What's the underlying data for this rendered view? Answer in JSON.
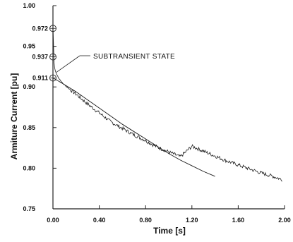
{
  "chart_data": {
    "type": "line",
    "title": "",
    "xlabel": "Time [s]",
    "ylabel": "Armiture Current [pu]",
    "xlim": [
      0.0,
      2.0
    ],
    "ylim": [
      0.75,
      1.0
    ],
    "grid": false,
    "x_ticks": [
      "0.00",
      "0.40",
      "0.80",
      "1.20",
      "1.60",
      "2.00"
    ],
    "x_tick_values": [
      0.0,
      0.4,
      0.8,
      1.2,
      1.6,
      2.0
    ],
    "y_ticks": [
      "0.75",
      "0.80",
      "0.85",
      "0.90",
      "0.95",
      "1.00"
    ],
    "y_tick_values": [
      0.75,
      0.8,
      0.85,
      0.9,
      0.95,
      1.0
    ],
    "markers": [
      {
        "label": "0.972",
        "x": 0.0,
        "y": 0.972
      },
      {
        "label": "0.937",
        "x": 0.0,
        "y": 0.937
      },
      {
        "label": "0.911",
        "x": 0.0,
        "y": 0.911
      }
    ],
    "annotation": {
      "text": "SUBTRANSIENT STATE",
      "x": 0.22,
      "y": 0.935,
      "points_to": [
        0.03,
        0.918
      ]
    },
    "series": [
      {
        "x": [
          0.0,
          0.002,
          0.004,
          0.006,
          0.008,
          0.01,
          0.014,
          0.02,
          0.03,
          0.05,
          0.08,
          0.12,
          0.2,
          0.3,
          0.4,
          0.5,
          0.6,
          0.7,
          0.8,
          0.9,
          1.0,
          1.1,
          1.2,
          1.3,
          1.4,
          1.5,
          1.6,
          1.7,
          1.8,
          1.9,
          1.98
        ],
        "y": [
          0.972,
          0.965,
          0.955,
          0.945,
          0.937,
          0.93,
          0.924,
          0.92,
          0.916,
          0.911,
          0.905,
          0.9,
          0.891,
          0.879,
          0.868,
          0.857,
          0.849,
          0.841,
          0.834,
          0.826,
          0.82,
          0.814,
          0.827,
          0.821,
          0.815,
          0.809,
          0.804,
          0.799,
          0.794,
          0.79,
          0.786
        ]
      },
      {
        "x": [
          0.0,
          0.05,
          0.12,
          0.2,
          0.3,
          0.4,
          0.5,
          0.6,
          0.7,
          0.8,
          0.9,
          1.0,
          1.1,
          1.2,
          1.3,
          1.4
        ],
        "y": [
          0.911,
          0.907,
          0.901,
          0.894,
          0.884,
          0.874,
          0.864,
          0.854,
          0.845,
          0.836,
          0.827,
          0.818,
          0.81,
          0.803,
          0.796,
          0.79
        ]
      }
    ]
  }
}
